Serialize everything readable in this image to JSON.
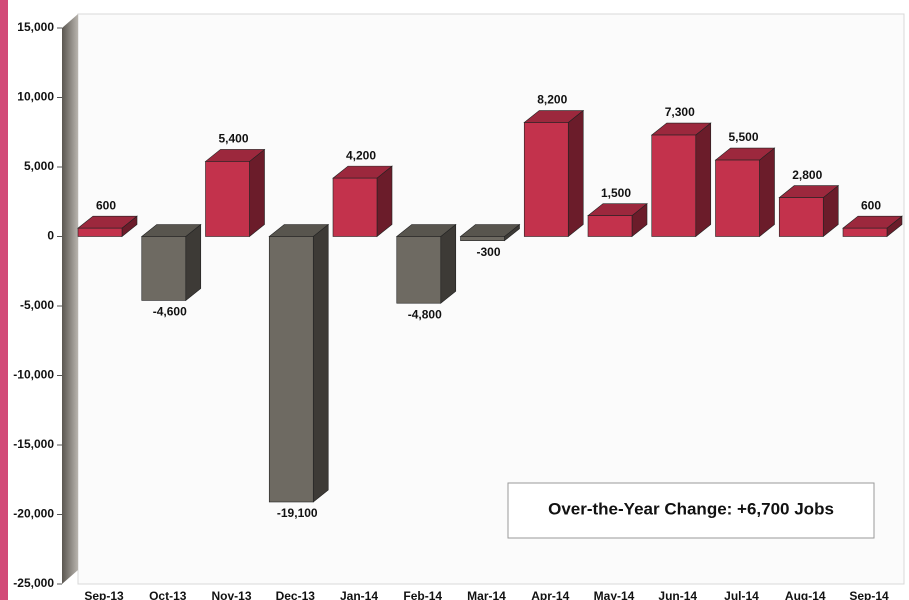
{
  "chart_data": {
    "type": "bar",
    "categories": [
      "Sep-13",
      "Oct-13",
      "Nov-13",
      "Dec-13",
      "Jan-14",
      "Feb-14",
      "Mar-14",
      "Apr-14",
      "May-14",
      "Jun-14",
      "Jul-14",
      "Aug-14",
      "Sep-14"
    ],
    "values": [
      600,
      -4600,
      5400,
      -19100,
      4200,
      -4800,
      -300,
      8200,
      1500,
      7300,
      5500,
      2800,
      600
    ],
    "value_labels": [
      "600",
      "-4,600",
      "5,400",
      "-19,100",
      "4,200",
      "-4,800",
      "-300",
      "8,200",
      "1,500",
      "7,300",
      "5,500",
      "2,800",
      "600"
    ],
    "positive_color": "#c3324c",
    "negative_color": "#6e6a62",
    "ylim": [
      -25000,
      15000
    ],
    "yticks": [
      {
        "value": -25000,
        "label": "-25,000"
      },
      {
        "value": -20000,
        "label": "-20,000"
      },
      {
        "value": -15000,
        "label": "-15,000"
      },
      {
        "value": -10000,
        "label": "-10,000"
      },
      {
        "value": -5000,
        "label": "-5,000"
      },
      0,
      {
        "value": 5000,
        "label": "5,000"
      },
      {
        "value": 10000,
        "label": "10,000"
      },
      {
        "value": 15000,
        "label": "15,000"
      }
    ],
    "annotation": "Over-the-Year Change: +6,700 Jobs"
  }
}
